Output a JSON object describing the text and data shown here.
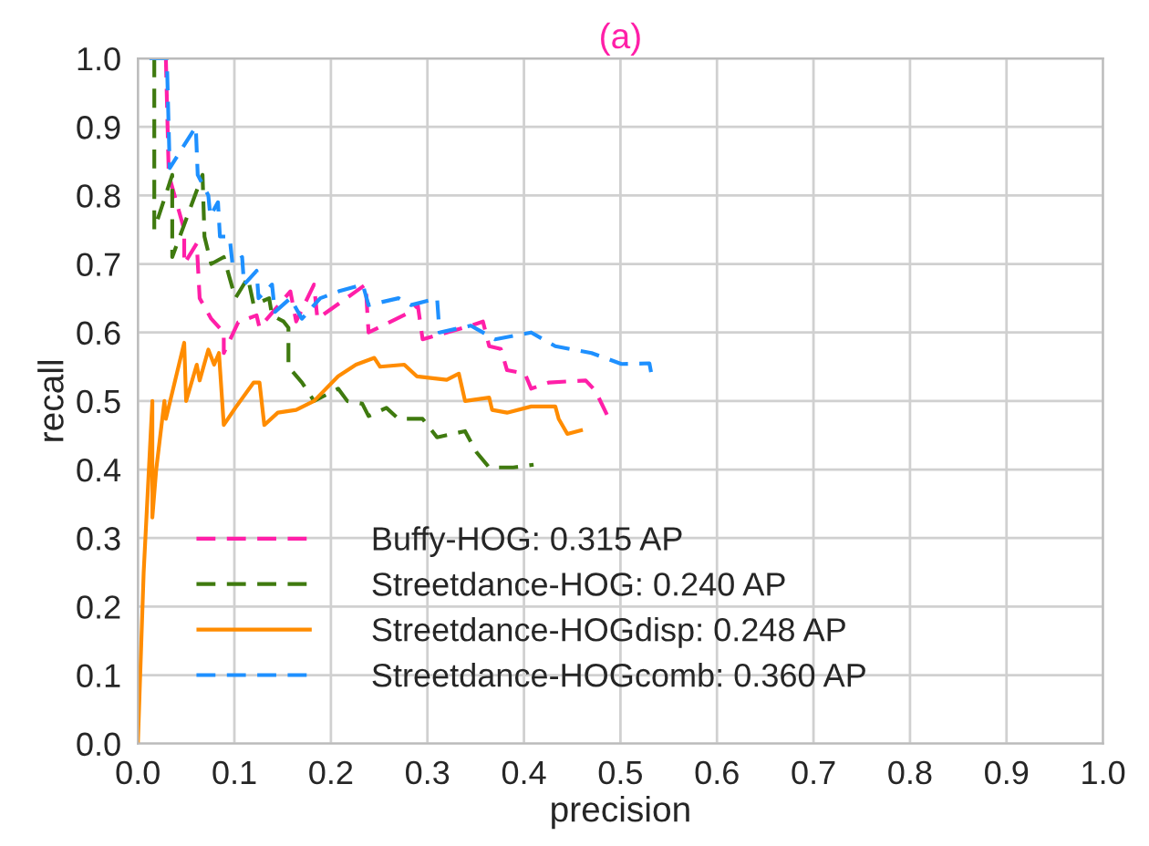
{
  "chart_data": {
    "type": "line",
    "title": "(a)",
    "xlabel": "precision",
    "ylabel": "recall",
    "xlim": [
      0,
      1
    ],
    "ylim": [
      0,
      1
    ],
    "xticks": [
      {
        "value": 0,
        "label": "0.0"
      },
      0.1,
      0.2,
      0.3,
      0.4,
      0.5,
      0.6,
      0.7,
      0.8,
      0.9,
      {
        "value": 1,
        "label": "1.0"
      }
    ],
    "yticks": [
      {
        "value": 0,
        "label": "0.0"
      },
      0.1,
      0.2,
      0.3,
      0.4,
      0.5,
      0.6,
      0.7,
      0.8,
      0.9,
      {
        "value": 1,
        "label": "1.0"
      }
    ],
    "grid": true,
    "legend": "bottom left",
    "marker": "none",
    "series": [
      {
        "name": "Buffy-HOG: 0.315 AP",
        "color": "#ff1fa8",
        "line_style": "dashed",
        "x": [
          0.029,
          0.032,
          0.048,
          0.048,
          0.061,
          0.064,
          0.076,
          0.089,
          0.089,
          0.104,
          0.123,
          0.126,
          0.158,
          0.164,
          0.1825,
          0.186,
          0.226,
          0.236,
          0.239,
          0.2825,
          0.29,
          0.295,
          0.345,
          0.3575,
          0.364,
          0.376,
          0.3825,
          0.401,
          0.4075,
          0.426,
          0.464,
          0.474,
          0.486
        ],
        "values": [
          1.0,
          0.83,
          0.75,
          0.7,
          0.73,
          0.65,
          0.62,
          0.6,
          0.57,
          0.615,
          0.625,
          0.607,
          0.66,
          0.616,
          0.67,
          0.62,
          0.66,
          0.67,
          0.6,
          0.63,
          0.64,
          0.59,
          0.61,
          0.616,
          0.58,
          0.576,
          0.545,
          0.54,
          0.518,
          0.527,
          0.53,
          0.515,
          0.48
        ]
      },
      {
        "name": "Streetdance-HOG: 0.240 AP",
        "color": "#3f7a0f",
        "line_style": "dashed",
        "x": [
          0.017,
          0.017,
          0.0356,
          0.0356,
          0.067,
          0.069,
          0.076,
          0.089,
          0.095,
          0.101,
          0.114,
          0.12,
          0.136,
          0.139,
          0.151,
          0.156,
          0.156,
          0.17,
          0.1825,
          0.2075,
          0.217,
          0.2325,
          0.239,
          0.2575,
          0.27,
          0.295,
          0.3,
          0.31,
          0.339,
          0.351,
          0.364,
          0.389,
          0.41
        ],
        "values": [
          1.0,
          0.75,
          0.83,
          0.71,
          0.83,
          0.74,
          0.7,
          0.71,
          0.68,
          0.65,
          0.68,
          0.64,
          0.65,
          0.625,
          0.616,
          0.607,
          0.55,
          0.527,
          0.5,
          0.518,
          0.5,
          0.496,
          0.478,
          0.49,
          0.474,
          0.474,
          0.465,
          0.447,
          0.456,
          0.425,
          0.403,
          0.403,
          0.407
        ]
      },
      {
        "name": "Streetdance-HOGdisp: 0.248 AP",
        "color": "#ff8c00",
        "line_style": "solid",
        "x": [
          0.0,
          0.006,
          0.015,
          0.015,
          0.019,
          0.0275,
          0.029,
          0.048,
          0.05,
          0.061,
          0.064,
          0.073,
          0.079,
          0.084,
          0.089,
          0.101,
          0.12,
          0.126,
          0.131,
          0.145,
          0.164,
          0.1825,
          0.2075,
          0.226,
          0.245,
          0.251,
          0.276,
          0.289,
          0.32,
          0.3325,
          0.339,
          0.364,
          0.367,
          0.3825,
          0.4075,
          0.4325,
          0.436,
          0.445,
          0.461
        ],
        "values": [
          0.0,
          0.25,
          0.5,
          0.33,
          0.4,
          0.5,
          0.474,
          0.585,
          0.5,
          0.553,
          0.53,
          0.575,
          0.553,
          0.57,
          0.465,
          0.49,
          0.527,
          0.527,
          0.465,
          0.483,
          0.487,
          0.5,
          0.536,
          0.553,
          0.563,
          0.55,
          0.553,
          0.536,
          0.531,
          0.54,
          0.5,
          0.505,
          0.487,
          0.483,
          0.492,
          0.492,
          0.474,
          0.452,
          0.458
        ]
      },
      {
        "name": "Streetdance-HOGcomb: 0.360 AP",
        "color": "#1e90ff",
        "line_style": "dashed",
        "x": [
          0.012,
          0.03,
          0.033,
          0.06,
          0.062,
          0.073,
          0.075,
          0.083,
          0.085,
          0.095,
          0.098,
          0.108,
          0.11,
          0.123,
          0.125,
          0.139,
          0.142,
          0.158,
          0.17,
          0.189,
          0.208,
          0.233,
          0.239,
          0.27,
          0.283,
          0.31,
          0.3125,
          0.345,
          0.37,
          0.4075,
          0.4325,
          0.47,
          0.501,
          0.53,
          0.5325
        ],
        "values": [
          1.0,
          1.0,
          0.84,
          0.9,
          0.83,
          0.8,
          0.77,
          0.79,
          0.74,
          0.74,
          0.7,
          0.71,
          0.67,
          0.69,
          0.65,
          0.67,
          0.63,
          0.65,
          0.62,
          0.65,
          0.66,
          0.67,
          0.64,
          0.65,
          0.64,
          0.65,
          0.6,
          0.61,
          0.59,
          0.6,
          0.58,
          0.57,
          0.554,
          0.555,
          0.536
        ]
      }
    ]
  }
}
